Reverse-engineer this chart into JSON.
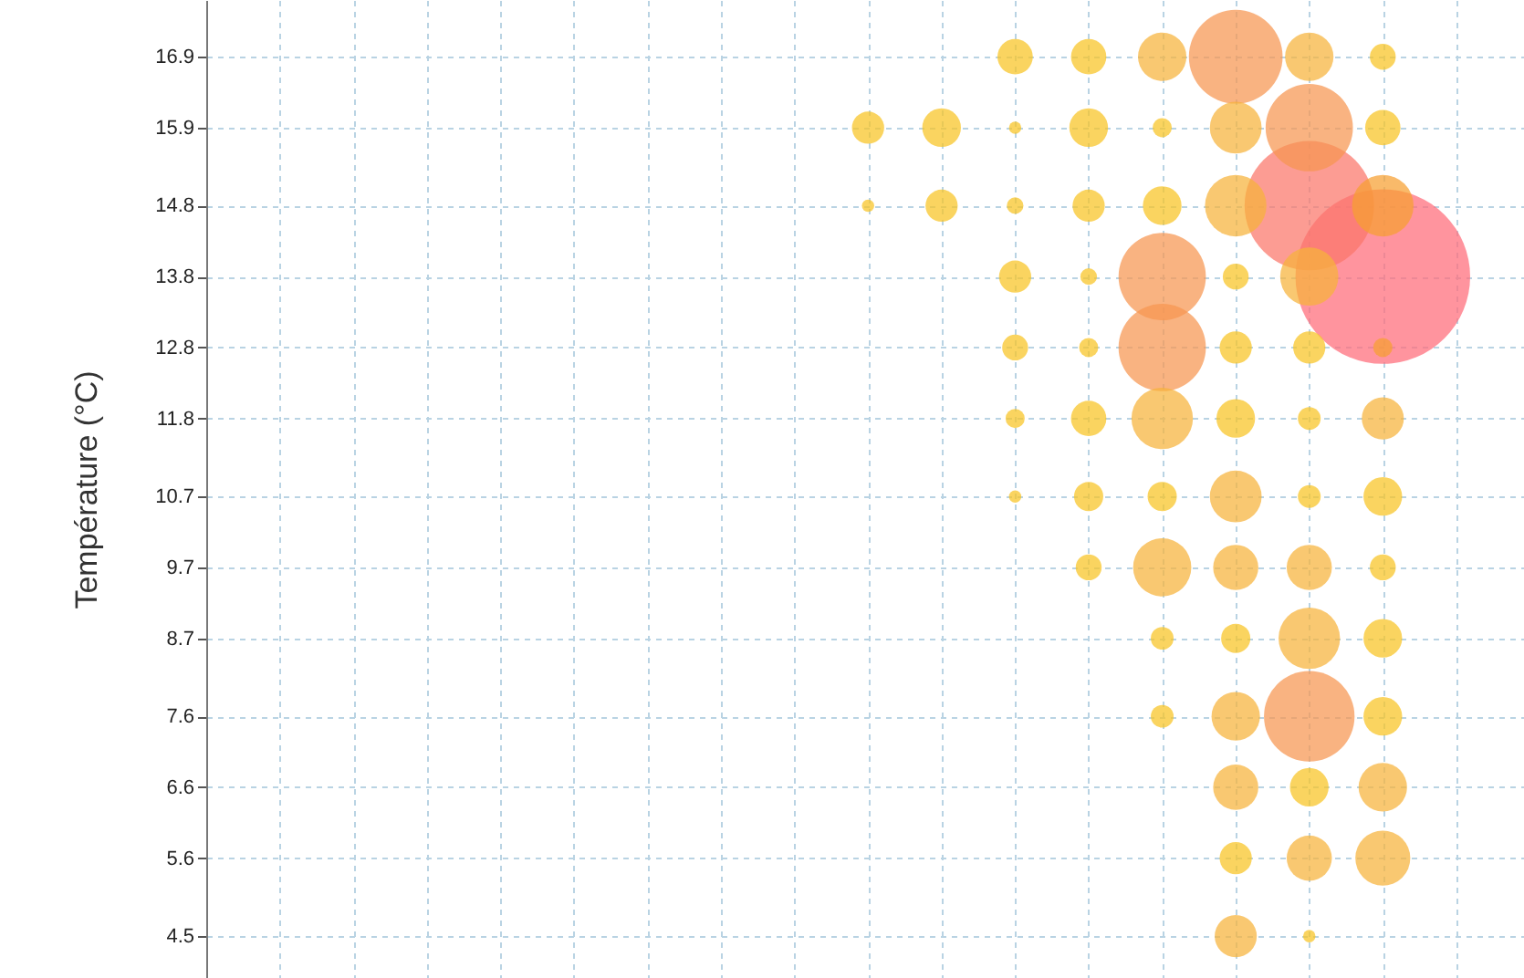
{
  "chart_data": {
    "type": "bubble",
    "ylabel": "Température (°C)",
    "categories": [
      null,
      null,
      null,
      null,
      null,
      null,
      null,
      null,
      null,
      null,
      null,
      null,
      null,
      null,
      null,
      null,
      null
    ],
    "ylim": [
      3.91,
      17.7
    ],
    "yticks": [
      4.5,
      5.6,
      6.6,
      7.6,
      8.7,
      9.7,
      10.7,
      11.8,
      12.8,
      13.8,
      14.8,
      15.9,
      16.9
    ],
    "tick_labels": "y",
    "grid": true,
    "series": [
      {
        "values": [
          null,
          null,
          null,
          null,
          null,
          null,
          null,
          null,
          null,
          null,
          16.9,
          16.9,
          16.9,
          16.9,
          16.9,
          16.9,
          null
        ],
        "sizes": [
          null,
          null,
          null,
          null,
          null,
          null,
          null,
          null,
          null,
          null,
          0.041,
          0.041,
          0.077,
          0.288,
          0.077,
          0.022,
          null
        ],
        "colors": [
          null,
          null,
          null,
          null,
          null,
          null,
          null,
          null,
          null,
          null,
          "#f8c423",
          "#f8c423",
          "#f6b33a",
          "#f79650",
          "#f6b33a",
          "#f8c423",
          null
        ]
      },
      {
        "values": [
          null,
          null,
          null,
          null,
          null,
          null,
          null,
          null,
          15.9,
          15.9,
          15.9,
          15.9,
          15.9,
          15.9,
          15.9,
          15.9,
          null
        ],
        "sizes": [
          null,
          null,
          null,
          null,
          null,
          null,
          null,
          null,
          0.034,
          0.049,
          0.005,
          0.049,
          0.012,
          0.088,
          0.25,
          0.041,
          null
        ],
        "colors": [
          null,
          null,
          null,
          null,
          null,
          null,
          null,
          null,
          "#f8c423",
          "#f8c423",
          "#f8c423",
          "#f8c423",
          "#f8c423",
          "#f6b33a",
          "#f79650",
          "#f8c423",
          null
        ]
      },
      {
        "values": [
          null,
          null,
          null,
          null,
          null,
          null,
          null,
          null,
          14.8,
          14.8,
          14.8,
          14.8,
          14.8,
          14.8,
          14.8,
          14.8,
          null
        ],
        "sizes": [
          null,
          null,
          null,
          null,
          null,
          null,
          null,
          null,
          0.005,
          0.034,
          0.009,
          0.034,
          0.049,
          0.124,
          0.549,
          0.124,
          null
        ],
        "colors": [
          null,
          null,
          null,
          null,
          null,
          null,
          null,
          null,
          "#f8c423",
          "#f8c423",
          "#f8c423",
          "#f8c423",
          "#f8c423",
          "#f6b33a",
          "#fb7669",
          "#f6a030",
          null
        ]
      },
      {
        "values": [
          null,
          null,
          null,
          null,
          null,
          null,
          null,
          null,
          null,
          null,
          13.8,
          13.8,
          13.8,
          13.8,
          13.8,
          13.8,
          null
        ],
        "sizes": [
          null,
          null,
          null,
          null,
          null,
          null,
          null,
          null,
          null,
          null,
          0.034,
          0.009,
          0.25,
          0.022,
          0.111,
          1,
          null
        ],
        "colors": [
          null,
          null,
          null,
          null,
          null,
          null,
          null,
          null,
          null,
          null,
          "#f8c423",
          "#f8c423",
          "#f79650",
          "#f8c423",
          "#f6b33a",
          "#ff6b78",
          null
        ]
      },
      {
        "values": [
          null,
          null,
          null,
          null,
          null,
          null,
          null,
          null,
          null,
          null,
          12.8,
          12.8,
          12.8,
          12.8,
          12.8,
          12.8,
          null
        ],
        "sizes": [
          null,
          null,
          null,
          null,
          null,
          null,
          null,
          null,
          null,
          null,
          0.022,
          0.012,
          0.25,
          0.034,
          0.034,
          0.012,
          null
        ],
        "colors": [
          null,
          null,
          null,
          null,
          null,
          null,
          null,
          null,
          null,
          null,
          "#f8c423",
          "#f8c423",
          "#f79650",
          "#f8c423",
          "#f8c423",
          "#f6a030",
          null
        ]
      },
      {
        "values": [
          null,
          null,
          null,
          null,
          null,
          null,
          null,
          null,
          null,
          null,
          11.8,
          11.8,
          11.8,
          11.8,
          11.8,
          11.8,
          null
        ],
        "sizes": [
          null,
          null,
          null,
          null,
          null,
          null,
          null,
          null,
          null,
          null,
          0.012,
          0.041,
          0.124,
          0.049,
          0.017,
          0.058,
          null
        ],
        "colors": [
          null,
          null,
          null,
          null,
          null,
          null,
          null,
          null,
          null,
          null,
          "#f8c423",
          "#f8c423",
          "#f6b33a",
          "#f8c423",
          "#f8c423",
          "#f6b33a",
          null
        ]
      },
      {
        "values": [
          null,
          null,
          null,
          null,
          null,
          null,
          null,
          null,
          null,
          null,
          10.7,
          10.7,
          10.7,
          10.7,
          10.7,
          10.7,
          null
        ],
        "sizes": [
          null,
          null,
          null,
          null,
          null,
          null,
          null,
          null,
          null,
          null,
          0.005,
          0.028,
          0.028,
          0.088,
          0.017,
          0.049,
          null
        ],
        "colors": [
          null,
          null,
          null,
          null,
          null,
          null,
          null,
          null,
          null,
          null,
          "#f8c423",
          "#f8c423",
          "#f8c423",
          "#f6b33a",
          "#f8c423",
          "#f8c423",
          null
        ]
      },
      {
        "values": [
          null,
          null,
          null,
          null,
          null,
          null,
          null,
          null,
          null,
          null,
          null,
          9.7,
          9.7,
          9.7,
          9.7,
          9.7,
          null
        ],
        "sizes": [
          null,
          null,
          null,
          null,
          null,
          null,
          null,
          null,
          null,
          null,
          null,
          0.022,
          0.111,
          0.067,
          0.067,
          0.022,
          null
        ],
        "colors": [
          null,
          null,
          null,
          null,
          null,
          null,
          null,
          null,
          null,
          null,
          null,
          "#f8c423",
          "#f6b33a",
          "#f6b33a",
          "#f6b33a",
          "#f8c423",
          null
        ]
      },
      {
        "values": [
          null,
          null,
          null,
          null,
          null,
          null,
          null,
          null,
          null,
          null,
          null,
          null,
          8.7,
          8.7,
          8.7,
          8.7,
          null
        ],
        "sizes": [
          null,
          null,
          null,
          null,
          null,
          null,
          null,
          null,
          null,
          null,
          null,
          null,
          0.017,
          0.028,
          0.124,
          0.049,
          null
        ],
        "colors": [
          null,
          null,
          null,
          null,
          null,
          null,
          null,
          null,
          null,
          null,
          null,
          null,
          "#f8c423",
          "#f8c423",
          "#f6b33a",
          "#f8c423",
          null
        ]
      },
      {
        "values": [
          null,
          null,
          null,
          null,
          null,
          null,
          null,
          null,
          null,
          null,
          null,
          null,
          7.6,
          7.6,
          7.6,
          7.6,
          null
        ],
        "sizes": [
          null,
          null,
          null,
          null,
          null,
          null,
          null,
          null,
          null,
          null,
          null,
          null,
          0.017,
          0.077,
          0.269,
          0.049,
          null
        ],
        "colors": [
          null,
          null,
          null,
          null,
          null,
          null,
          null,
          null,
          null,
          null,
          null,
          null,
          "#f8c423",
          "#f6b33a",
          "#f79650",
          "#f8c423",
          null
        ]
      },
      {
        "values": [
          null,
          null,
          null,
          null,
          null,
          null,
          null,
          null,
          null,
          null,
          null,
          null,
          null,
          6.6,
          6.6,
          6.6,
          null
        ],
        "sizes": [
          null,
          null,
          null,
          null,
          null,
          null,
          null,
          null,
          null,
          null,
          null,
          null,
          null,
          0.067,
          0.049,
          0.077,
          null
        ],
        "colors": [
          null,
          null,
          null,
          null,
          null,
          null,
          null,
          null,
          null,
          null,
          null,
          null,
          null,
          "#f6b33a",
          "#f8c423",
          "#f6b33a",
          null
        ]
      },
      {
        "values": [
          null,
          null,
          null,
          null,
          null,
          null,
          null,
          null,
          null,
          null,
          null,
          null,
          null,
          5.6,
          5.6,
          5.6,
          null
        ],
        "sizes": [
          null,
          null,
          null,
          null,
          null,
          null,
          null,
          null,
          null,
          null,
          null,
          null,
          null,
          0.034,
          0.067,
          0.099,
          null
        ],
        "colors": [
          null,
          null,
          null,
          null,
          null,
          null,
          null,
          null,
          null,
          null,
          null,
          null,
          null,
          "#f8c423",
          "#f6b33a",
          "#f6b33a",
          null
        ]
      },
      {
        "values": [
          null,
          null,
          null,
          null,
          null,
          null,
          null,
          null,
          null,
          null,
          null,
          null,
          null,
          4.5,
          4.5,
          null,
          null
        ],
        "sizes": [
          null,
          null,
          null,
          null,
          null,
          null,
          null,
          null,
          null,
          null,
          null,
          null,
          null,
          0.058,
          0.005,
          null,
          null
        ],
        "colors": [
          null,
          null,
          null,
          null,
          null,
          null,
          null,
          null,
          null,
          null,
          null,
          null,
          null,
          "#f6b33a",
          "#f8c423",
          null,
          null
        ]
      }
    ]
  }
}
